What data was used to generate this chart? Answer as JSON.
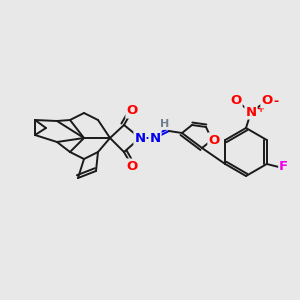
{
  "bg_color": "#e8e8e8",
  "bond_color": "#1a1a1a",
  "bond_width": 1.4,
  "atom_colors": {
    "O": "#ff0000",
    "N": "#0000ee",
    "N2": "#0000ee",
    "F": "#ee00ee",
    "H": "#708090",
    "NO2_N": "#ff0000",
    "NO2_O": "#ff0000"
  },
  "font_size": 8.5,
  "fig_size": [
    3.0,
    3.0
  ],
  "dpi": 100
}
